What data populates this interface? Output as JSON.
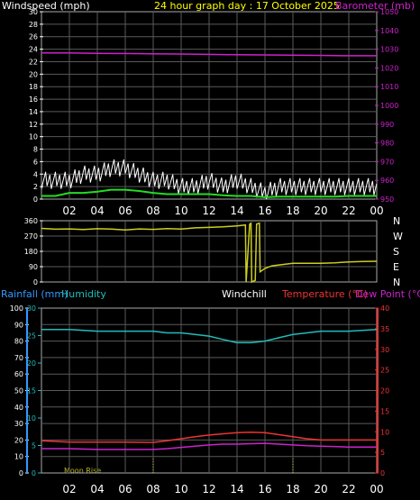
{
  "header": {
    "left_title": "Windspeed (mph)",
    "center_title": "24 hour graph day : 17 October 2025",
    "right_title": "Barometer (mb)"
  },
  "bottom_header": {
    "rainfall": "Rainfall (mm)",
    "humidity": "Humidity",
    "windchill": "Windchill",
    "temperature": "Temperature (°C)",
    "dewpoint": "Dew Point (°C)"
  },
  "colors": {
    "background": "#000000",
    "grid": "#5a5a5a",
    "windspeed": "#ffffff",
    "wind_avg": "#22dd22",
    "barometer": "#cc22cc",
    "direction": "#cccc22",
    "humidity": "#22bbbb",
    "temperature": "#ee3333",
    "dewpoint": "#cc22cc",
    "rain_axis": "#3399ff"
  },
  "annotation": "Moon Rise",
  "direction_labels": [
    "N",
    "W",
    "S",
    "E",
    "N"
  ],
  "x_labels": [
    "02",
    "04",
    "06",
    "08",
    "10",
    "12",
    "14",
    "16",
    "18",
    "20",
    "22",
    "00"
  ],
  "chart_data": [
    {
      "type": "line",
      "xlabel": "",
      "xlim": [
        0,
        24
      ],
      "ylim": [
        0,
        30
      ],
      "y2lim": [
        950,
        1050
      ],
      "yticks": [
        "0",
        "2",
        "4",
        "6",
        "8",
        "10",
        "12",
        "14",
        "16",
        "18",
        "20",
        "22",
        "24",
        "26",
        "28",
        "30"
      ],
      "y2ticks": [
        "950",
        "960",
        "970",
        "980",
        "990",
        "1000",
        "1010",
        "1020",
        "1030",
        "1040",
        "1050"
      ],
      "series": [
        {
          "name": "Windspeed (mph)",
          "axis": "left",
          "style": "gust",
          "x": [
            0,
            1,
            2,
            3,
            4,
            5,
            6,
            7,
            8,
            9,
            10,
            11,
            12,
            13,
            14,
            15,
            16,
            17,
            18,
            19,
            20,
            21,
            22,
            23,
            24
          ],
          "y": [
            3,
            3,
            3,
            4,
            4,
            5,
            5,
            4,
            3,
            3,
            2,
            2,
            3,
            2,
            3,
            2,
            1,
            2,
            2,
            2,
            2,
            2,
            2,
            2,
            2
          ]
        },
        {
          "name": "Windspeed average",
          "axis": "left",
          "style": "avg",
          "x": [
            0,
            1,
            2,
            3,
            4,
            5,
            6,
            7,
            8,
            9,
            10,
            11,
            12,
            13,
            14,
            15,
            16,
            17,
            18,
            19,
            20,
            21,
            22,
            23,
            24
          ],
          "y": [
            0.5,
            0.5,
            1,
            1,
            1.2,
            1.5,
            1.5,
            1.3,
            1,
            0.8,
            0.8,
            0.8,
            0.8,
            0.6,
            0.5,
            0.5,
            0.3,
            0.4,
            0.4,
            0.4,
            0.4,
            0.4,
            0.5,
            0.5,
            0.5
          ]
        },
        {
          "name": "Barometer (mb)",
          "axis": "right",
          "x": [
            0,
            2,
            4,
            6,
            8,
            10,
            12,
            14,
            16,
            18,
            20,
            22,
            24
          ],
          "y": [
            1028,
            1028,
            1027.8,
            1027.7,
            1027.5,
            1027.4,
            1027.2,
            1027,
            1026.9,
            1026.8,
            1026.7,
            1026.5,
            1026.5
          ]
        }
      ]
    },
    {
      "type": "line",
      "xlabel": "",
      "xlim": [
        0,
        24
      ],
      "ylim": [
        0,
        360
      ],
      "yticks": [
        "0",
        "90",
        "180",
        "270",
        "360"
      ],
      "series": [
        {
          "name": "Wind direction",
          "x": [
            0,
            1,
            2,
            3,
            4,
            5,
            6,
            7,
            8,
            9,
            10,
            11,
            12,
            13,
            14,
            14.6,
            14.65,
            14.9,
            15,
            15.05,
            15.3,
            15.4,
            15.6,
            15.65,
            16,
            16.5,
            17,
            18,
            19,
            20,
            21,
            22,
            23,
            24
          ],
          "y": [
            315,
            310,
            312,
            308,
            313,
            311,
            306,
            312,
            309,
            314,
            311,
            318,
            321,
            324,
            330,
            335,
            0,
            340,
            345,
            0,
            10,
            340,
            345,
            60,
            80,
            95,
            100,
            110,
            110,
            110,
            112,
            118,
            120,
            122
          ]
        }
      ]
    },
    {
      "type": "line",
      "xlabel": "",
      "xlim": [
        0,
        24
      ],
      "ylim": [
        0,
        100
      ],
      "y2lim": [
        0,
        30
      ],
      "y3lim": [
        0,
        40
      ],
      "yticks": [
        "0",
        "10",
        "20",
        "30",
        "40",
        "50",
        "60",
        "70",
        "80",
        "90",
        "100"
      ],
      "y2ticks": [
        "0",
        "5",
        "10",
        "15",
        "20",
        "25",
        "30"
      ],
      "y3ticks": [
        "0",
        "5",
        "10",
        "15",
        "20",
        "25",
        "30",
        "35",
        "40"
      ],
      "series": [
        {
          "name": "Humidity",
          "axis": "left",
          "x": [
            0,
            2,
            4,
            6,
            8,
            9,
            10,
            11,
            12,
            13,
            14,
            15,
            16,
            17,
            18,
            19,
            20,
            22,
            24
          ],
          "y": [
            87,
            87,
            86,
            86,
            86,
            85,
            85,
            84,
            83,
            81,
            79,
            79,
            80,
            82,
            84,
            85,
            86,
            86,
            87
          ]
        },
        {
          "name": "Temperature (°C)",
          "axis": "right",
          "x": [
            0,
            2,
            4,
            6,
            8,
            9,
            10,
            11,
            12,
            13,
            14,
            15,
            16,
            17,
            18,
            19,
            20,
            22,
            24
          ],
          "y": [
            7.8,
            7.5,
            7.5,
            7.5,
            7.4,
            7.8,
            8.3,
            8.8,
            9.2,
            9.5,
            9.8,
            9.9,
            9.8,
            9.3,
            8.8,
            8.3,
            8.0,
            8.0,
            8.0
          ]
        },
        {
          "name": "Dew Point (°C)",
          "axis": "right",
          "x": [
            0,
            2,
            4,
            6,
            8,
            9,
            10,
            11,
            12,
            13,
            14,
            15,
            16,
            17,
            18,
            19,
            20,
            22,
            24
          ],
          "y": [
            5.9,
            5.9,
            5.7,
            5.7,
            5.7,
            5.9,
            6.2,
            6.5,
            6.8,
            7.0,
            7.0,
            7.1,
            7.2,
            7.0,
            6.8,
            6.6,
            6.5,
            6.3,
            6.3
          ]
        }
      ]
    }
  ]
}
